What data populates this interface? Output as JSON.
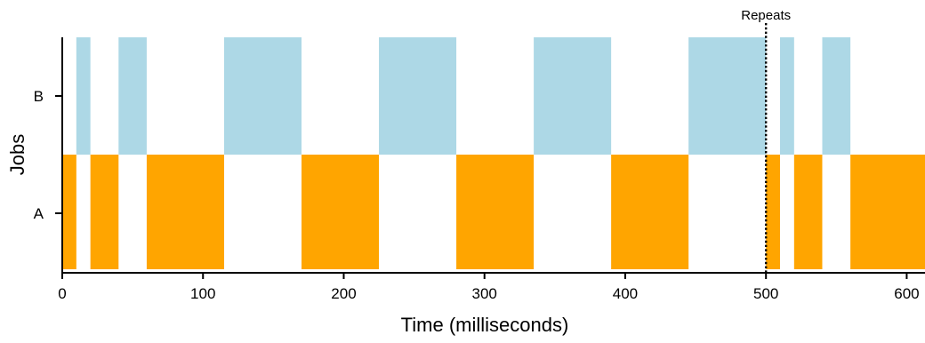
{
  "chart_data": {
    "type": "timeline",
    "xlabel": "Time (milliseconds)",
    "ylabel": "Jobs",
    "xlim": [
      0,
      613
    ],
    "x_ticks": [
      0,
      100,
      200,
      300,
      400,
      500,
      600
    ],
    "categories": [
      "A",
      "B"
    ],
    "colors": {
      "A": "#FFA500",
      "B": "#ADD8E6"
    },
    "series": [
      {
        "name": "B",
        "intervals": [
          [
            10,
            20
          ],
          [
            40,
            60
          ],
          [
            115,
            170
          ],
          [
            225,
            280
          ],
          [
            335,
            390
          ],
          [
            445,
            500
          ],
          [
            510,
            520
          ],
          [
            540,
            560
          ]
        ]
      },
      {
        "name": "A",
        "intervals": [
          [
            0,
            10
          ],
          [
            20,
            40
          ],
          [
            60,
            115
          ],
          [
            170,
            225
          ],
          [
            280,
            335
          ],
          [
            390,
            445
          ],
          [
            500,
            510
          ],
          [
            520,
            540
          ],
          [
            560,
            613
          ]
        ]
      }
    ],
    "annotations": [
      {
        "x": 500,
        "label": "Repeats",
        "style": "dotted-vertical-line"
      }
    ],
    "grid": false,
    "legend": "none"
  }
}
